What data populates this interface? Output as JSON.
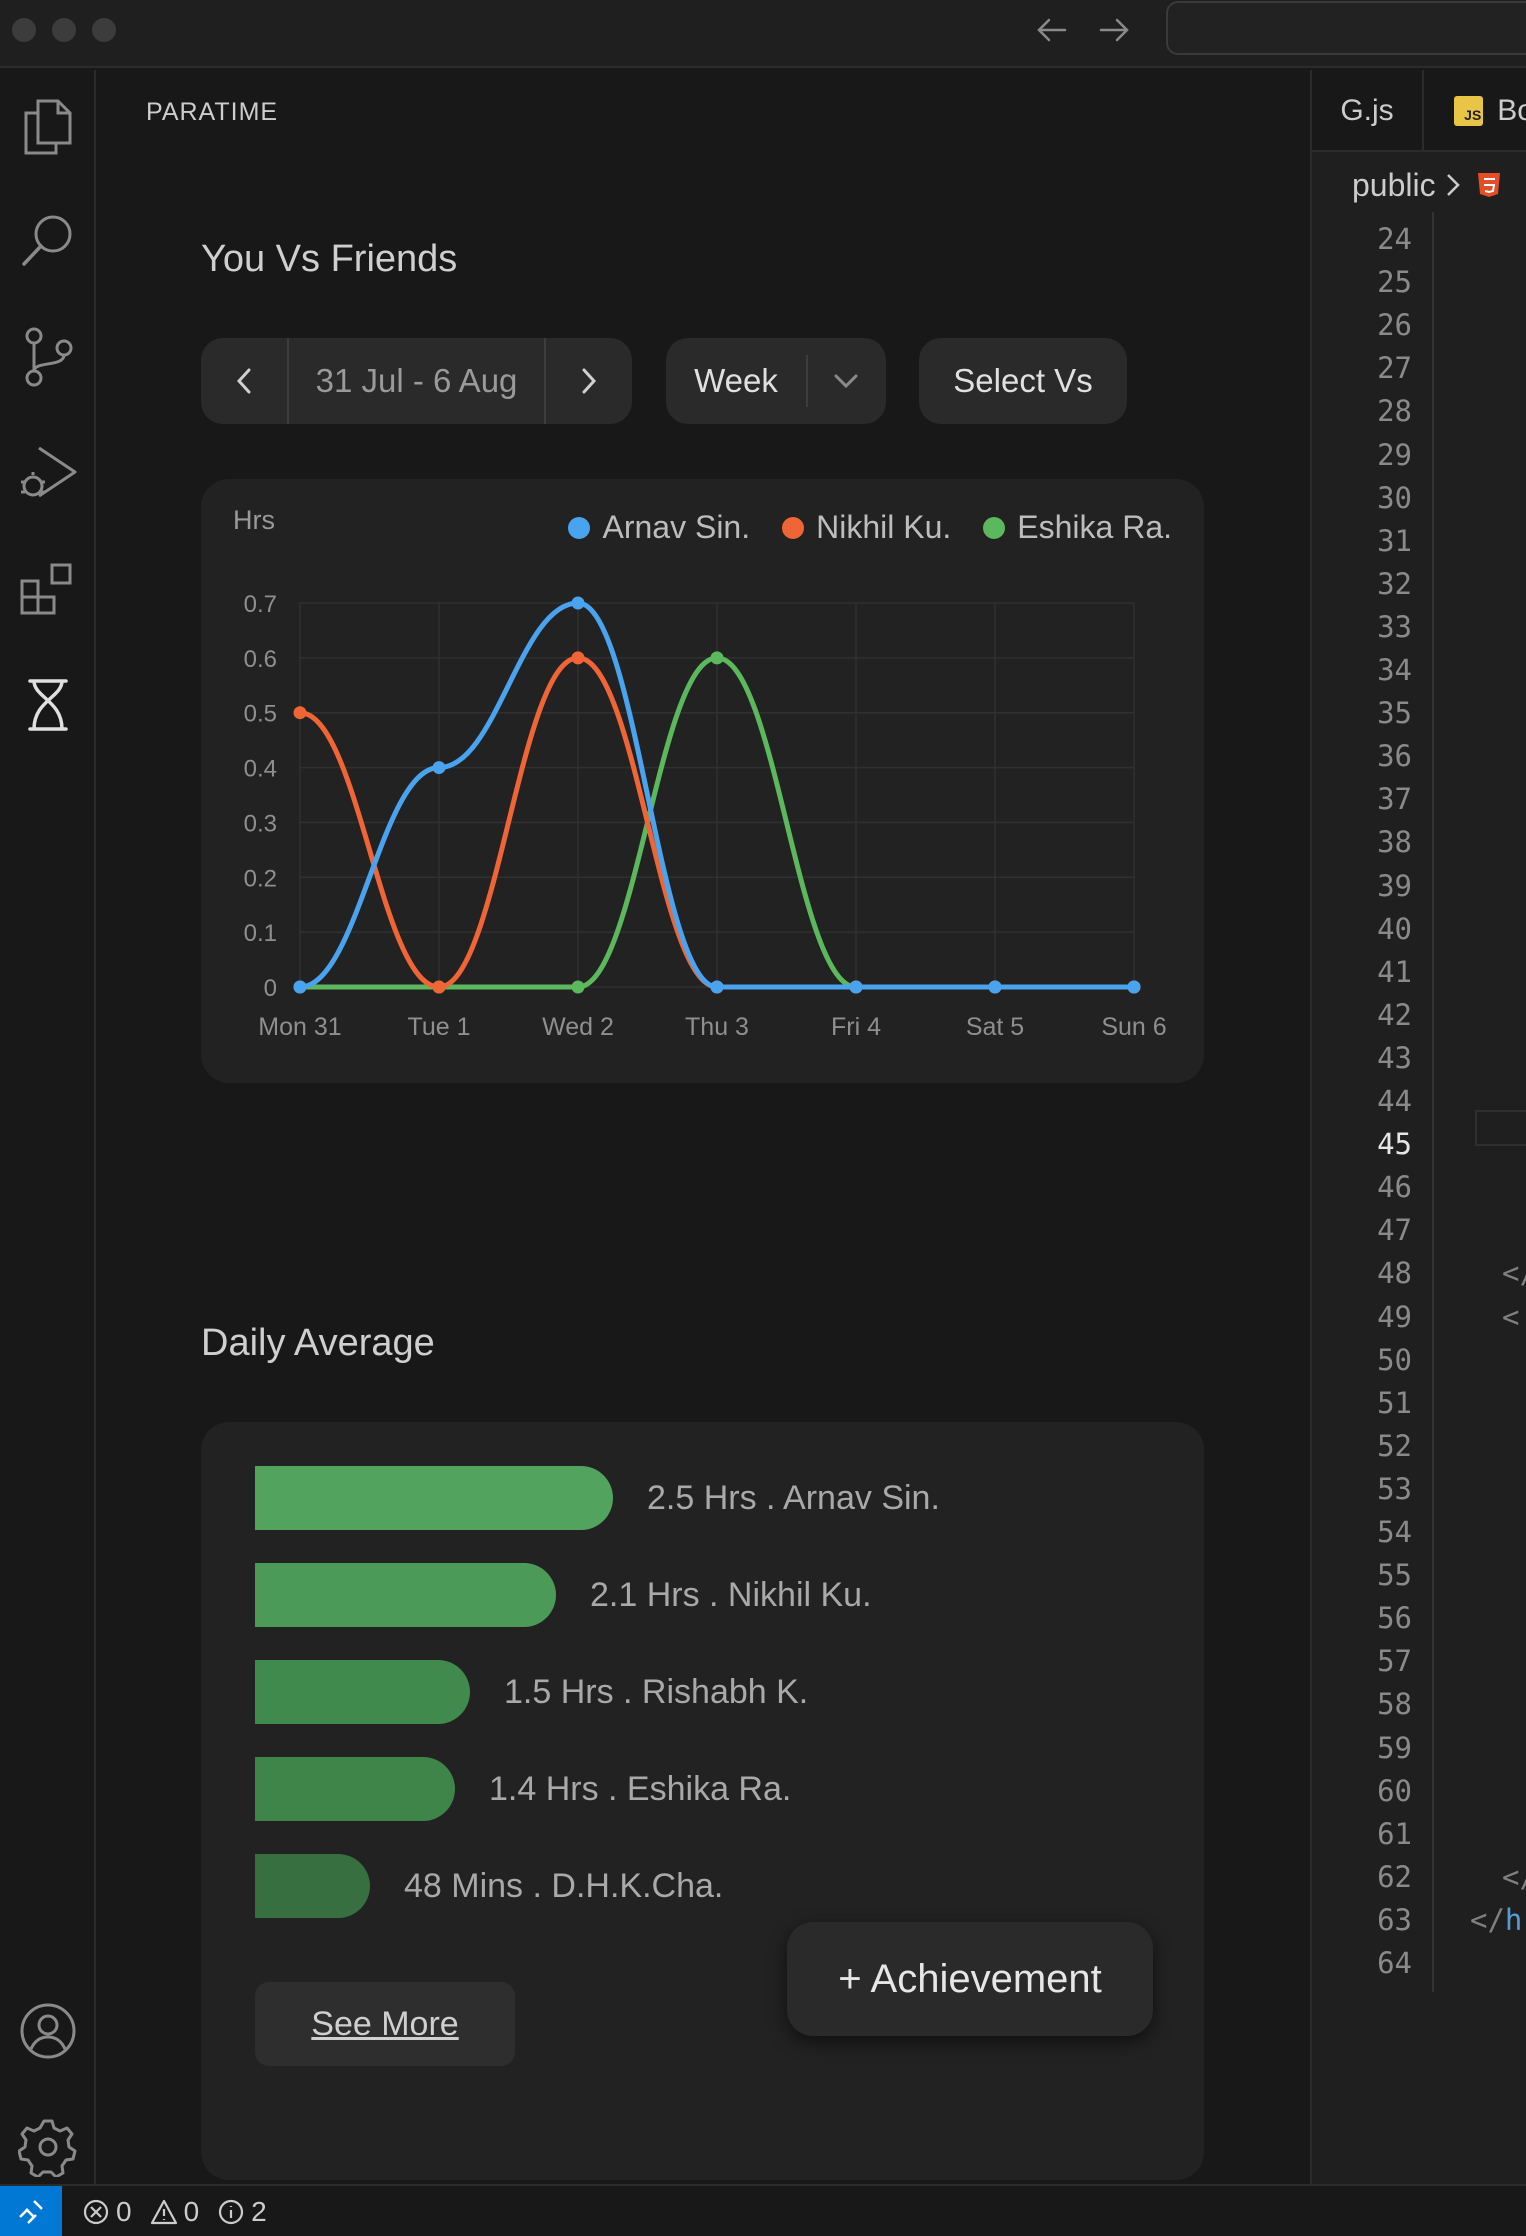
{
  "sidebar": {
    "title": "PARATIME"
  },
  "vs_section": {
    "title": "You Vs Friends",
    "date_range": "31 Jul - 6 Aug",
    "period": "Week",
    "select_vs": "Select Vs"
  },
  "chart_data": {
    "type": "line",
    "ylabel": "Hrs",
    "categories": [
      "Mon 31",
      "Tue 1",
      "Wed 2",
      "Thu 3",
      "Fri 4",
      "Sat 5",
      "Sun 6"
    ],
    "ylim": [
      0,
      0.7
    ],
    "yticks": [
      0,
      0.1,
      0.2,
      0.3,
      0.4,
      0.5,
      0.6,
      0.7
    ],
    "ytick_labels": [
      "0",
      "0.1",
      "0.2",
      "0.3",
      "0.4",
      "0.5",
      "0.6",
      "0.7"
    ],
    "legend_position": "top-right",
    "grid": true,
    "series": [
      {
        "name": "Arnav Sin.",
        "color": "#4aa3ef",
        "values": [
          0,
          0.4,
          0.7,
          0,
          0,
          0,
          0
        ]
      },
      {
        "name": "Nikhil Ku.",
        "color": "#f06535",
        "values": [
          0.5,
          0,
          0.6,
          0,
          0,
          0,
          0
        ]
      },
      {
        "name": "Eshika Ra.",
        "color": "#5cb85c",
        "values": [
          0,
          0,
          0,
          0.6,
          0,
          0,
          0
        ]
      }
    ]
  },
  "daily_average": {
    "title": "Daily Average",
    "items": [
      {
        "label": "2.5 Hrs . Arnav Sin.",
        "hours": 2.5,
        "color": "#52a35e"
      },
      {
        "label": "2.1 Hrs . Nikhil Ku.",
        "hours": 2.1,
        "color": "#4c9a58"
      },
      {
        "label": "1.5 Hrs . Rishabh K.",
        "hours": 1.5,
        "color": "#418a4d"
      },
      {
        "label": "1.4 Hrs . Eshika Ra.",
        "hours": 1.4,
        "color": "#3f8449"
      },
      {
        "label": "48 Mins . D.H.K.Cha.",
        "hours": 0.8,
        "color": "#376f40"
      }
    ],
    "see_more": "See More"
  },
  "achievement_button": "+ Achievement",
  "editor": {
    "tabs": [
      {
        "label": "G.js"
      },
      {
        "label": "Bo",
        "icon_text": "JS"
      }
    ],
    "breadcrumb": {
      "folder": "public"
    },
    "line_numbers": [
      "24",
      "25",
      "26",
      "27",
      "28",
      "29",
      "30",
      "31",
      "32",
      "33",
      "34",
      "35",
      "36",
      "37",
      "38",
      "39",
      "40",
      "41",
      "42",
      "43",
      "44",
      "45",
      "46",
      "47",
      "48",
      "49",
      "50",
      "51",
      "52",
      "53",
      "54",
      "55",
      "56",
      "57",
      "58",
      "59",
      "60",
      "61",
      "62",
      "63",
      "64"
    ],
    "active_line": "45",
    "code_fragments": [
      {
        "line": "48",
        "text": "</"
      },
      {
        "line": "49",
        "text": "<"
      },
      {
        "line": "62",
        "text": "</"
      },
      {
        "line": "63",
        "text": "</h"
      }
    ]
  },
  "status": {
    "errors": "0",
    "warnings": "0",
    "info": "2"
  },
  "icons": {
    "explorer": "files-icon",
    "search": "search-icon",
    "scm": "source-control-icon",
    "debug": "run-debug-icon",
    "extensions": "extensions-icon",
    "paratime": "hourglass-icon",
    "account": "account-icon",
    "settings": "gear-icon"
  }
}
